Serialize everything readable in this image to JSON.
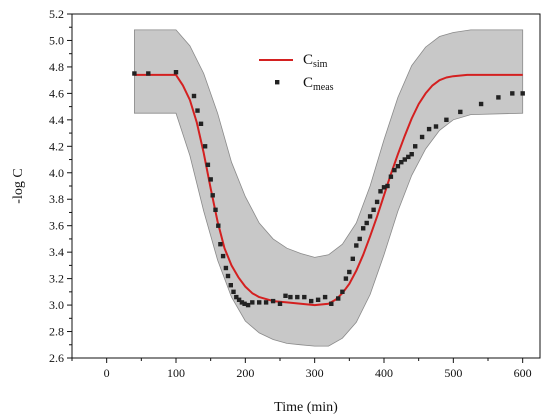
{
  "chart_data": {
    "type": "line",
    "xlabel": "Time (min)",
    "ylabel": "-log C",
    "xlim": [
      -50,
      625
    ],
    "ylim": [
      2.6,
      5.2
    ],
    "x_ticks": [
      "0",
      "100",
      "200",
      "300",
      "400",
      "500",
      "600"
    ],
    "y_ticks": [
      "2.6",
      "2.8",
      "3.0",
      "3.2",
      "3.4",
      "3.6",
      "3.8",
      "4.0",
      "4.2",
      "4.4",
      "4.6",
      "4.8",
      "5.0",
      "5.2"
    ],
    "grid": false,
    "legend": {
      "placement": "top-center"
    },
    "colors": {
      "sim": "#d42020",
      "meas": "#222222",
      "band_fill": "#c8c8c8",
      "band_stroke": "#8a8a8a"
    },
    "series": [
      {
        "name": "C",
        "subscript": "sim",
        "kind": "line",
        "points": [
          [
            40,
            4.74
          ],
          [
            60,
            4.74
          ],
          [
            80,
            4.74
          ],
          [
            100,
            4.74
          ],
          [
            110,
            4.66
          ],
          [
            120,
            4.55
          ],
          [
            130,
            4.38
          ],
          [
            140,
            4.15
          ],
          [
            150,
            3.88
          ],
          [
            160,
            3.63
          ],
          [
            170,
            3.43
          ],
          [
            180,
            3.3
          ],
          [
            190,
            3.21
          ],
          [
            200,
            3.14
          ],
          [
            210,
            3.09
          ],
          [
            220,
            3.06
          ],
          [
            240,
            3.03
          ],
          [
            260,
            3.02
          ],
          [
            280,
            3.01
          ],
          [
            300,
            3.0
          ],
          [
            320,
            3.01
          ],
          [
            330,
            3.04
          ],
          [
            340,
            3.09
          ],
          [
            350,
            3.16
          ],
          [
            360,
            3.26
          ],
          [
            370,
            3.38
          ],
          [
            380,
            3.52
          ],
          [
            390,
            3.67
          ],
          [
            400,
            3.83
          ],
          [
            410,
            3.99
          ],
          [
            420,
            4.14
          ],
          [
            430,
            4.28
          ],
          [
            440,
            4.41
          ],
          [
            450,
            4.52
          ],
          [
            460,
            4.6
          ],
          [
            470,
            4.66
          ],
          [
            480,
            4.7
          ],
          [
            490,
            4.72
          ],
          [
            500,
            4.73
          ],
          [
            520,
            4.74
          ],
          [
            550,
            4.74
          ],
          [
            575,
            4.74
          ],
          [
            600,
            4.74
          ]
        ]
      },
      {
        "name": "C",
        "subscript": "meas",
        "kind": "scatter",
        "points": [
          [
            40,
            4.75
          ],
          [
            60,
            4.75
          ],
          [
            100,
            4.76
          ],
          [
            126,
            4.58
          ],
          [
            131,
            4.47
          ],
          [
            136,
            4.37
          ],
          [
            142,
            4.2
          ],
          [
            146,
            4.06
          ],
          [
            150,
            3.95
          ],
          [
            153,
            3.83
          ],
          [
            157,
            3.72
          ],
          [
            161,
            3.6
          ],
          [
            164,
            3.46
          ],
          [
            168,
            3.37
          ],
          [
            172,
            3.28
          ],
          [
            175,
            3.22
          ],
          [
            179,
            3.15
          ],
          [
            183,
            3.1
          ],
          [
            187,
            3.06
          ],
          [
            191,
            3.04
          ],
          [
            195,
            3.02
          ],
          [
            199,
            3.01
          ],
          [
            204,
            3.0
          ],
          [
            210,
            3.02
          ],
          [
            220,
            3.02
          ],
          [
            230,
            3.02
          ],
          [
            240,
            3.03
          ],
          [
            250,
            3.01
          ],
          [
            258,
            3.07
          ],
          [
            265,
            3.06
          ],
          [
            275,
            3.06
          ],
          [
            285,
            3.06
          ],
          [
            295,
            3.03
          ],
          [
            305,
            3.04
          ],
          [
            315,
            3.06
          ],
          [
            324,
            3.01
          ],
          [
            334,
            3.05
          ],
          [
            340,
            3.1
          ],
          [
            345,
            3.2
          ],
          [
            350,
            3.25
          ],
          [
            355,
            3.35
          ],
          [
            360,
            3.45
          ],
          [
            365,
            3.5
          ],
          [
            370,
            3.58
          ],
          [
            375,
            3.62
          ],
          [
            380,
            3.67
          ],
          [
            385,
            3.72
          ],
          [
            390,
            3.78
          ],
          [
            395,
            3.86
          ],
          [
            400,
            3.89
          ],
          [
            405,
            3.9
          ],
          [
            410,
            3.97
          ],
          [
            415,
            4.02
          ],
          [
            420,
            4.05
          ],
          [
            425,
            4.08
          ],
          [
            430,
            4.1
          ],
          [
            435,
            4.12
          ],
          [
            440,
            4.14
          ],
          [
            445,
            4.2
          ],
          [
            455,
            4.27
          ],
          [
            465,
            4.33
          ],
          [
            475,
            4.35
          ],
          [
            490,
            4.4
          ],
          [
            510,
            4.46
          ],
          [
            540,
            4.52
          ],
          [
            565,
            4.57
          ],
          [
            585,
            4.6
          ],
          [
            600,
            4.6
          ]
        ]
      }
    ],
    "band": {
      "upper": [
        [
          40,
          5.08
        ],
        [
          100,
          5.08
        ],
        [
          120,
          4.96
        ],
        [
          140,
          4.75
        ],
        [
          160,
          4.45
        ],
        [
          180,
          4.08
        ],
        [
          200,
          3.82
        ],
        [
          220,
          3.62
        ],
        [
          240,
          3.5
        ],
        [
          260,
          3.43
        ],
        [
          280,
          3.39
        ],
        [
          300,
          3.36
        ],
        [
          320,
          3.38
        ],
        [
          340,
          3.46
        ],
        [
          360,
          3.62
        ],
        [
          380,
          3.9
        ],
        [
          400,
          4.25
        ],
        [
          420,
          4.57
        ],
        [
          440,
          4.81
        ],
        [
          460,
          4.95
        ],
        [
          480,
          5.03
        ],
        [
          500,
          5.06
        ],
        [
          525,
          5.08
        ],
        [
          600,
          5.08
        ]
      ],
      "lower": [
        [
          40,
          4.45
        ],
        [
          100,
          4.45
        ],
        [
          120,
          4.13
        ],
        [
          140,
          3.71
        ],
        [
          160,
          3.34
        ],
        [
          180,
          3.06
        ],
        [
          200,
          2.88
        ],
        [
          220,
          2.79
        ],
        [
          240,
          2.74
        ],
        [
          260,
          2.71
        ],
        [
          280,
          2.7
        ],
        [
          300,
          2.69
        ],
        [
          320,
          2.69
        ],
        [
          340,
          2.75
        ],
        [
          360,
          2.87
        ],
        [
          380,
          3.08
        ],
        [
          400,
          3.38
        ],
        [
          420,
          3.71
        ],
        [
          440,
          3.98
        ],
        [
          460,
          4.18
        ],
        [
          480,
          4.32
        ],
        [
          500,
          4.4
        ],
        [
          525,
          4.44
        ],
        [
          600,
          4.45
        ]
      ]
    }
  }
}
